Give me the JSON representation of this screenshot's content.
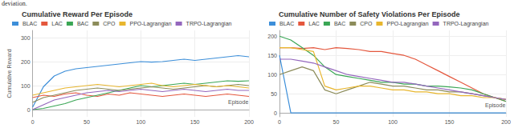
{
  "caption": "deviation.",
  "chart_data": [
    {
      "type": "line",
      "title": "Cumulative Reward Per Episode",
      "x_label": "Episode",
      "y_label": "Cumulative Reward",
      "x": [
        0,
        10,
        20,
        30,
        40,
        50,
        60,
        70,
        80,
        90,
        100,
        110,
        120,
        130,
        140,
        150,
        160,
        170,
        180,
        190,
        200
      ],
      "xlim": [
        0,
        200
      ],
      "xticks": [
        0,
        50,
        100,
        150,
        200
      ],
      "ylim": [
        -30,
        330
      ],
      "yticks": [
        0,
        100,
        200,
        300
      ],
      "grid": true,
      "legend": "top",
      "series": [
        {
          "name": "BLAC",
          "color": "#3d8fd9",
          "values": [
            10,
            95,
            140,
            160,
            170,
            175,
            180,
            185,
            190,
            195,
            200,
            198,
            200,
            205,
            210,
            205,
            210,
            215,
            220,
            225,
            220
          ]
        },
        {
          "name": "LAC",
          "color": "#e4573d",
          "values": [
            50,
            60,
            55,
            65,
            70,
            60,
            55,
            65,
            60,
            70,
            65,
            60,
            55,
            60,
            65,
            60,
            55,
            60,
            65,
            60,
            55
          ]
        },
        {
          "name": "BAC",
          "color": "#3aa655",
          "values": [
            0,
            5,
            15,
            25,
            40,
            50,
            60,
            70,
            80,
            90,
            100,
            95,
            100,
            105,
            110,
            105,
            110,
            115,
            120,
            118,
            120
          ]
        },
        {
          "name": "CPO",
          "color": "#8c8c5a",
          "values": [
            30,
            50,
            60,
            70,
            80,
            85,
            90,
            85,
            80,
            85,
            90,
            95,
            90,
            85,
            90,
            95,
            100,
            95,
            100,
            105,
            100
          ]
        },
        {
          "name": "PPO-Lagrangian",
          "color": "#e8b62e",
          "values": [
            60,
            70,
            80,
            90,
            95,
            100,
            105,
            100,
            95,
            100,
            105,
            110,
            100,
            95,
            100,
            105,
            100,
            95,
            100,
            95,
            90
          ]
        },
        {
          "name": "TRPO-Lagrangian",
          "color": "#9467bd",
          "values": [
            0,
            20,
            40,
            50,
            60,
            70,
            75,
            80,
            75,
            80,
            85,
            80,
            75,
            80,
            85,
            80,
            75,
            80,
            85,
            80,
            80
          ]
        }
      ]
    },
    {
      "type": "line",
      "title": "Cumulative Number of Safety Violations Per Episode",
      "x_label": "Episode",
      "x": [
        0,
        10,
        20,
        30,
        40,
        50,
        60,
        70,
        80,
        90,
        100,
        110,
        120,
        130,
        140,
        150,
        160,
        170,
        180,
        190,
        200
      ],
      "xlim": [
        0,
        200
      ],
      "xticks": [
        0,
        50,
        100,
        150,
        200
      ],
      "ylim": [
        -10,
        215
      ],
      "yticks": [
        0,
        50,
        100,
        150,
        200
      ],
      "grid": true,
      "legend": "top",
      "series": [
        {
          "name": "BLAC",
          "color": "#3d8fd9",
          "values": [
            150,
            0,
            0,
            0,
            0,
            0,
            0,
            0,
            0,
            0,
            0,
            0,
            0,
            0,
            0,
            0,
            0,
            0,
            0,
            0,
            0
          ]
        },
        {
          "name": "LAC",
          "color": "#e4573d",
          "values": [
            170,
            170,
            168,
            170,
            165,
            170,
            168,
            165,
            160,
            160,
            155,
            150,
            140,
            125,
            110,
            95,
            80,
            65,
            50,
            40,
            30
          ]
        },
        {
          "name": "BAC",
          "color": "#3aa655",
          "values": [
            200,
            190,
            170,
            150,
            120,
            100,
            95,
            90,
            85,
            80,
            80,
            75,
            75,
            70,
            70,
            68,
            65,
            60,
            50,
            40,
            30
          ]
        },
        {
          "name": "CPO",
          "color": "#8c8c5a",
          "values": [
            100,
            110,
            120,
            110,
            60,
            50,
            60,
            70,
            80,
            75,
            70,
            70,
            65,
            60,
            60,
            55,
            55,
            50,
            45,
            40,
            35
          ]
        },
        {
          "name": "PPO-Lagrangian",
          "color": "#e8b62e",
          "values": [
            170,
            170,
            165,
            160,
            70,
            60,
            65,
            70,
            70,
            65,
            60,
            60,
            55,
            55,
            50,
            50,
            45,
            45,
            40,
            40,
            35
          ]
        },
        {
          "name": "TRPO-Lagrangian",
          "color": "#9467bd",
          "values": [
            140,
            140,
            135,
            130,
            120,
            110,
            100,
            95,
            90,
            85,
            80,
            80,
            75,
            70,
            65,
            60,
            55,
            50,
            45,
            40,
            35
          ]
        }
      ]
    }
  ]
}
